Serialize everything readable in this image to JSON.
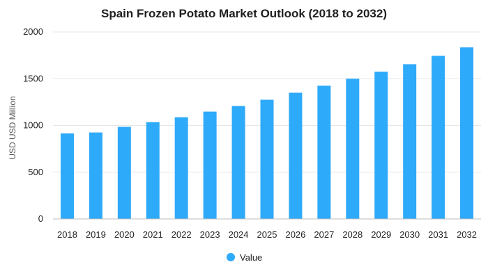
{
  "chart_data": {
    "type": "bar",
    "title": "Spain Frozen Potato Market Outlook (2018 to 2032)",
    "xlabel": "",
    "ylabel": "USD USD Million",
    "categories": [
      "2018",
      "2019",
      "2020",
      "2021",
      "2022",
      "2023",
      "2024",
      "2025",
      "2026",
      "2027",
      "2028",
      "2029",
      "2030",
      "2031",
      "2032"
    ],
    "series": [
      {
        "name": "Value",
        "values": [
          915,
          925,
          985,
          1035,
          1088,
          1148,
          1208,
          1275,
          1350,
          1425,
          1500,
          1575,
          1655,
          1745,
          1835
        ],
        "color": "#2eaafa"
      }
    ],
    "ylim": [
      0,
      2000
    ],
    "yticks": [
      0,
      500,
      1000,
      1500,
      2000
    ],
    "grid": true,
    "legend_position": "bottom-center"
  }
}
